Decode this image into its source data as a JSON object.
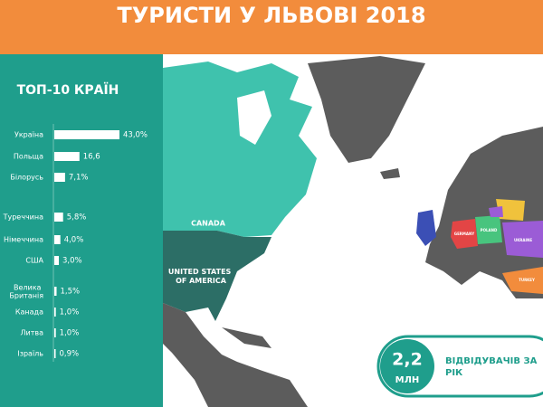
{
  "title": "ТУРИСТИ У ЛЬВОВІ 2018",
  "chart_data": {
    "type": "bar",
    "orientation": "horizontal",
    "title": "ТОП-10 КРАЇН",
    "categories": [
      "Україна",
      "Польща",
      "Білорусь",
      "Туреччина",
      "Німеччина",
      "США",
      "Велика Британія",
      "Канада",
      "Литва",
      "Ізраїль"
    ],
    "values": [
      43.0,
      16.6,
      7.1,
      5.8,
      4.0,
      3.0,
      1.5,
      1.0,
      1.0,
      0.9
    ],
    "value_labels": [
      "43,0%",
      "16,6",
      "7,1%",
      "5,8%",
      "4,0%",
      "3,0%",
      "1,5%",
      "1,0%",
      "1,0%",
      "0,9%"
    ],
    "color": "#ffffff"
  },
  "map": {
    "labels": [
      "CANADA",
      "UNITED STATES OF AMERICA",
      "GERMANY",
      "POLAND",
      "UKRAINE",
      "TURKEY"
    ]
  },
  "stat": {
    "value": "2,2",
    "unit": "МЛН",
    "caption": "ВІДВІДУВАЧІВ ЗА РІК"
  }
}
